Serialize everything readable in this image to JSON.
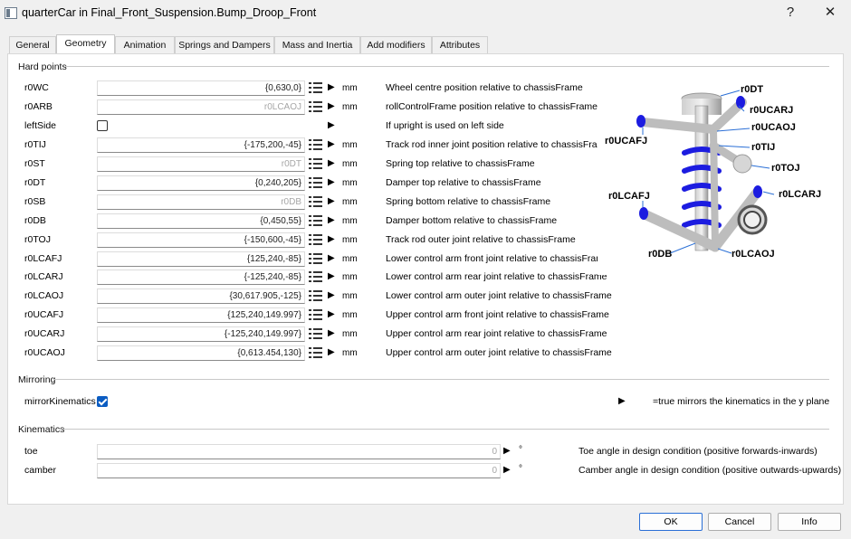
{
  "window": {
    "title": "quarterCar in Final_Front_Suspension.Bump_Droop_Front",
    "help_glyph": "?",
    "close_glyph": "✕"
  },
  "tabs": [
    {
      "label": "General"
    },
    {
      "label": "Geometry"
    },
    {
      "label": "Animation"
    },
    {
      "label": "Springs and Dampers"
    },
    {
      "label": "Mass and Inertia"
    },
    {
      "label": "Add modifiers"
    },
    {
      "label": "Attributes"
    }
  ],
  "active_tab": "Geometry",
  "hard_points": {
    "title": "Hard points",
    "rows": [
      {
        "label": "r0WC",
        "value": "{0,630,0}",
        "unit": "mm",
        "desc": "Wheel centre position relative to chassisFrame"
      },
      {
        "label": "r0ARB",
        "placeholder": "r0LCAOJ",
        "unit": "mm",
        "desc": "rollControlFrame position relative to chassisFrame"
      },
      {
        "label": "leftSide",
        "checkbox": false,
        "desc": "If upright is used on left side"
      },
      {
        "label": "r0TIJ",
        "value": "{-175,200,-45}",
        "unit": "mm",
        "desc": "Track rod inner joint position relative to chassisFrame"
      },
      {
        "label": "r0ST",
        "placeholder": "r0DT",
        "unit": "mm",
        "desc": "Spring top relative to chassisFrame"
      },
      {
        "label": "r0DT",
        "value": "{0,240,205}",
        "unit": "mm",
        "desc": "Damper top relative to chassisFrame"
      },
      {
        "label": "r0SB",
        "placeholder": "r0DB",
        "unit": "mm",
        "desc": "Spring bottom relative to chassisFrame"
      },
      {
        "label": "r0DB",
        "value": "{0,450,55}",
        "unit": "mm",
        "desc": "Damper bottom relative to chassisFrame"
      },
      {
        "label": "r0TOJ",
        "value": "{-150,600,-45}",
        "unit": "mm",
        "desc": "Track rod outer joint relative to chassisFrame"
      },
      {
        "label": "r0LCAFJ",
        "value": "{125,240,-85}",
        "unit": "mm",
        "desc": "Lower control arm front joint relative to chassisFrame"
      },
      {
        "label": "r0LCARJ",
        "value": "{-125,240,-85}",
        "unit": "mm",
        "desc": "Lower control arm rear joint relative to chassisFrame"
      },
      {
        "label": "r0LCAOJ",
        "value": "{30,617.905,-125}",
        "unit": "mm",
        "desc": "Lower control arm outer joint relative to chassisFrame"
      },
      {
        "label": "r0UCAFJ",
        "value": "{125,240,149.997}",
        "unit": "mm",
        "desc": "Upper control arm front joint relative to chassisFrame"
      },
      {
        "label": "r0UCARJ",
        "value": "{-125,240,149.997}",
        "unit": "mm",
        "desc": "Upper control arm rear joint relative to chassisFrame"
      },
      {
        "label": "r0UCAOJ",
        "value": "{0,613.454,130}",
        "unit": "mm",
        "desc": "Upper control arm outer joint relative to chassisFrame"
      }
    ]
  },
  "mirroring": {
    "title": "Mirroring",
    "label": "mirrorKinematics",
    "checked": true,
    "desc": "=true mirrors the kinematics in the y plane"
  },
  "kinematics": {
    "title": "Kinematics",
    "rows": [
      {
        "label": "toe",
        "value": "0",
        "unit": "°",
        "desc": "Toe angle in design condition (positive forwards-inwards)"
      },
      {
        "label": "camber",
        "value": "0",
        "unit": "°",
        "desc": "Camber angle in design condition (positive outwards-upwards)"
      }
    ]
  },
  "diagram_labels": {
    "r0DT": "r0DT",
    "r0UCARJ": "r0UCARJ",
    "r0UCAOJ": "r0UCAOJ",
    "r0UCAFJ": "r0UCAFJ",
    "r0TIJ": "r0TIJ",
    "r0TOJ": "r0TOJ",
    "r0LCAFJ": "r0LCAFJ",
    "r0LCARJ": "r0LCARJ",
    "r0DB": "r0DB",
    "r0LCAOJ": "r0LCAOJ"
  },
  "buttons": {
    "ok": "OK",
    "cancel": "Cancel",
    "info": "Info"
  },
  "colors": {
    "accent_blue": "#0b5cc2",
    "part_blue": "#1c1ce0",
    "rod_gray": "#b9b9b9"
  }
}
